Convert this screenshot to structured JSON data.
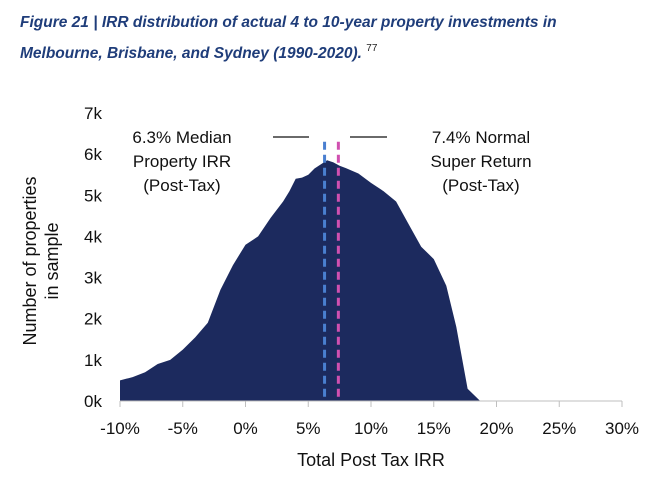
{
  "caption": {
    "text": "Figure 21 | IRR distribution of actual 4 to 10-year property investments in Melbourne, Brisbane, and Sydney (1990-2020).",
    "footnote": "77"
  },
  "chart_data": {
    "type": "area",
    "title": "",
    "xlabel": "Total Post Tax IRR",
    "ylabel": "Number of properties in sample",
    "xlim": [
      -10,
      30
    ],
    "ylim": [
      0,
      7000
    ],
    "x_ticks": [
      -10,
      -5,
      0,
      5,
      10,
      15,
      20,
      25,
      30
    ],
    "x_tick_labels": [
      "-10%",
      "-5%",
      "0%",
      "5%",
      "10%",
      "15%",
      "20%",
      "25%",
      "30%"
    ],
    "y_ticks": [
      0,
      1000,
      2000,
      3000,
      4000,
      5000,
      6000,
      7000
    ],
    "y_tick_labels": [
      "0k",
      "1k",
      "2k",
      "3k",
      "4k",
      "5k",
      "6k",
      "7k"
    ],
    "grid": false,
    "fill_color": "#1c2a5e",
    "series": [
      {
        "name": "Number of properties",
        "x": [
          -10,
          -9,
          -8,
          -7,
          -6,
          -5,
          -4,
          -3,
          -2,
          -1,
          0,
          1,
          2,
          3,
          3.5,
          4,
          4.5,
          5,
          5.5,
          6,
          6.5,
          7,
          7.5,
          8,
          9,
          10,
          11,
          12,
          13,
          14,
          15,
          16,
          16.8,
          17.7,
          18.7,
          19.5
        ],
        "values": [
          500,
          580,
          700,
          900,
          1000,
          1250,
          1550,
          1900,
          2700,
          3300,
          3800,
          4000,
          4450,
          4850,
          5100,
          5400,
          5430,
          5500,
          5650,
          5750,
          5850,
          5800,
          5720,
          5660,
          5530,
          5300,
          5100,
          4850,
          4300,
          3750,
          3450,
          2800,
          1800,
          300,
          0,
          0
        ]
      }
    ],
    "reference_lines": [
      {
        "name": "median",
        "x": 6.3,
        "color": "#4a7fd0",
        "label_lines": [
          "6.3% Median",
          "Property IRR",
          "(Post-Tax)"
        ]
      },
      {
        "name": "normal-super",
        "x": 7.4,
        "color": "#d050b0",
        "label_lines": [
          "7.4% Normal",
          "Super Return",
          "(Post-Tax)"
        ]
      }
    ]
  }
}
